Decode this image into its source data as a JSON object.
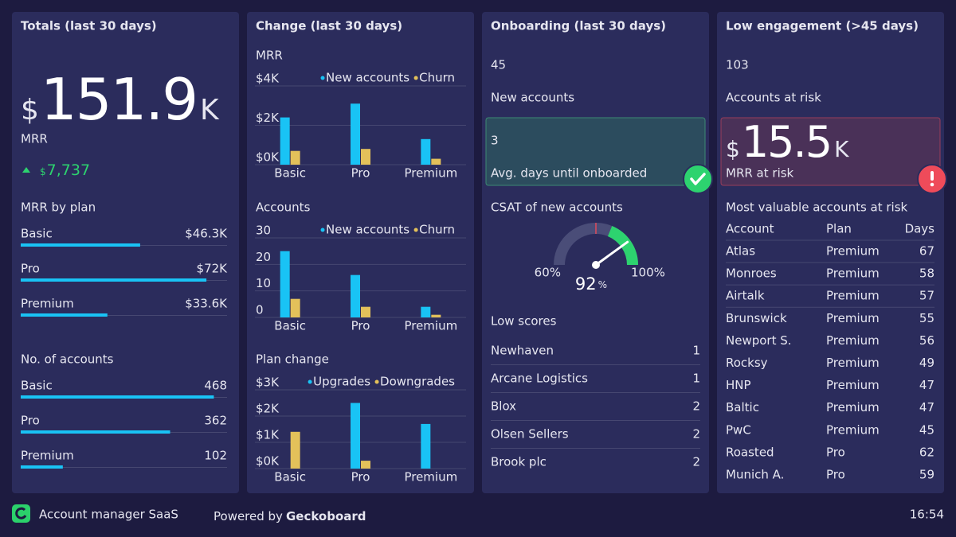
{
  "dashboard": {
    "title": "Account manager SaaS",
    "powered_by": "Powered by",
    "brand": "Geckoboard",
    "time": "16:54"
  },
  "totals": {
    "title": "Totals (last 30 days)",
    "mrr": {
      "prefix": "$",
      "number": "151.9",
      "suffix": "K",
      "label": "MRR"
    },
    "change": {
      "prefix": "$",
      "number": "7,737",
      "direction": "up",
      "color": "#2dd36f"
    },
    "mrr_by_plan": {
      "title": "MRR by plan",
      "type": "hbar",
      "color": "#19c3f5",
      "xlim": [
        0,
        80000
      ],
      "categories": [
        "Basic",
        "Pro",
        "Premium"
      ],
      "values": [
        46300,
        72000,
        33600
      ],
      "value_labels": [
        "$46.3K",
        "$72K",
        "$33.6K"
      ]
    },
    "accounts_by_plan": {
      "title": "No. of accounts",
      "type": "hbar",
      "color": "#19c3f5",
      "xlim": [
        0,
        500
      ],
      "categories": [
        "Basic",
        "Pro",
        "Premium"
      ],
      "values": [
        468,
        362,
        102
      ]
    }
  },
  "change": {
    "title": "Change (last 30 days)",
    "charts": [
      {
        "type": "bar",
        "title": "MRR",
        "categories": [
          "Basic",
          "Pro",
          "Premium"
        ],
        "series": [
          {
            "name": "New accounts",
            "color": "#19c3f5",
            "values": [
              2400,
              3100,
              1300
            ]
          },
          {
            "name": "Churn",
            "color": "#e3c15a",
            "values": [
              700,
              800,
              300
            ]
          }
        ],
        "ylim": [
          0,
          4000
        ],
        "yticks": [
          {
            "value": 0,
            "label": "$0K"
          },
          {
            "value": 2000,
            "label": "$2K"
          },
          {
            "value": 4000,
            "label": "$4K"
          }
        ],
        "grid": true
      },
      {
        "type": "bar",
        "title": "Accounts",
        "categories": [
          "Basic",
          "Pro",
          "Premium"
        ],
        "series": [
          {
            "name": "New accounts",
            "color": "#19c3f5",
            "values": [
              25,
              16,
              4
            ]
          },
          {
            "name": "Churn",
            "color": "#e3c15a",
            "values": [
              7,
              4,
              1
            ]
          }
        ],
        "ylim": [
          0,
          30
        ],
        "yticks": [
          0,
          10,
          20,
          30
        ],
        "grid": true
      },
      {
        "type": "bar",
        "title": "Plan change",
        "categories": [
          "Basic",
          "Pro",
          "Premium"
        ],
        "series": [
          {
            "name": "Upgrades",
            "color": "#19c3f5",
            "values": [
              0,
              2500,
              1700
            ]
          },
          {
            "name": "Downgrades",
            "color": "#e3c15a",
            "values": [
              1400,
              300,
              0
            ]
          }
        ],
        "ylim": [
          0,
          3000
        ],
        "yticks": [
          {
            "value": 0,
            "label": "$0K"
          },
          {
            "value": 1000,
            "label": "$1K"
          },
          {
            "value": 2000,
            "label": "$2K"
          },
          {
            "value": 3000,
            "label": "$3K"
          }
        ],
        "grid": true
      }
    ]
  },
  "onboarding": {
    "title": "Onboarding (last 30 days)",
    "new_accounts": {
      "value": 45,
      "label": "New accounts"
    },
    "avg_days": {
      "value": 3,
      "label": "Avg. days until onboarded",
      "status": "good"
    },
    "csat": {
      "title": "CSAT of new accounts",
      "type": "gauge",
      "value": 92,
      "unit": "%",
      "min": {
        "value": 60,
        "label": "60%"
      },
      "max": {
        "value": 100,
        "label": "100%"
      },
      "marker": 80,
      "green_from": 85
    },
    "low_scores": {
      "title": "Low scores",
      "rows": [
        [
          "Newhaven",
          1
        ],
        [
          "Arcane Logistics",
          1
        ],
        [
          "Blox",
          2
        ],
        [
          "Olsen Sellers",
          2
        ],
        [
          "Brook plc",
          2
        ]
      ]
    }
  },
  "engagement": {
    "title": "Low engagement (>45 days)",
    "accounts_at_risk": {
      "value": 103,
      "label": "Accounts at risk"
    },
    "mrr_at_risk": {
      "prefix": "$",
      "number": "15.5",
      "suffix": "K",
      "label": "MRR at risk",
      "status": "bad"
    },
    "table": {
      "title": "Most valuable accounts at risk",
      "columns": [
        "Account",
        "Plan",
        "Days"
      ],
      "rows": [
        [
          "Atlas",
          "Premium",
          67
        ],
        [
          "Monroes",
          "Premium",
          58
        ],
        [
          "Airtalk",
          "Premium",
          57
        ],
        [
          "Brunswick",
          "Premium",
          55
        ],
        [
          "Newport S.",
          "Premium",
          56
        ],
        [
          "Rocksy",
          "Premium",
          49
        ],
        [
          "HNP",
          "Premium",
          47
        ],
        [
          "Baltic",
          "Premium",
          47
        ],
        [
          "PwC",
          "Premium",
          45
        ],
        [
          "Roasted",
          "Pro",
          62
        ],
        [
          "Munich A.",
          "Pro",
          59
        ]
      ]
    }
  }
}
